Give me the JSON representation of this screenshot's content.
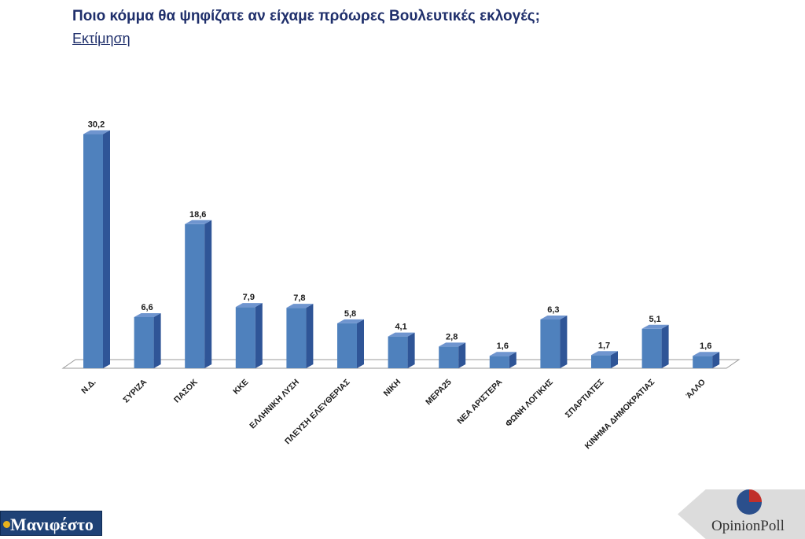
{
  "title": "Ποιο κόμμα θα ψηφίζατε αν είχαμε πρόωρες Βουλευτικές εκλογές;",
  "subtitle": "Εκτίμηση",
  "chart_data": {
    "type": "bar",
    "categories": [
      "Ν.Δ.",
      "ΣΥΡΙΖΑ",
      "ΠΑΣΟΚ",
      "ΚΚΕ",
      "ΕΛΛΗΝΙΚΗ ΛΥΣΗ",
      "ΠΛΕΥΣΗ ΕΛΕΥΘΕΡΙΑΣ",
      "ΝΙΚΗ",
      "ΜΕΡΑ25",
      "ΝΕΑ ΑΡΙΣΤΕΡΑ",
      "ΦΩΝΗ ΛΟΓΙΚΗΣ",
      "ΣΠΑΡΤΙΑΤΕΣ",
      "ΚΙΝΗΜΑ ΔΗΜΟΚΡΑΤΙΑΣ",
      "ΆΛΛΟ"
    ],
    "values": [
      30.2,
      6.6,
      18.6,
      7.9,
      7.8,
      5.8,
      4.1,
      2.8,
      1.6,
      6.3,
      1.7,
      5.1,
      1.6
    ],
    "value_labels": [
      "30,2",
      "6,6",
      "18,6",
      "7,9",
      "7,8",
      "5,8",
      "4,1",
      "2,8",
      "1,6",
      "6,3",
      "1,7",
      "5,1",
      "1,6"
    ],
    "bar_color": "#4f81bd",
    "grid": false
  },
  "logos": {
    "left": "Μανιφέστο",
    "right": "OpinionPoll"
  }
}
